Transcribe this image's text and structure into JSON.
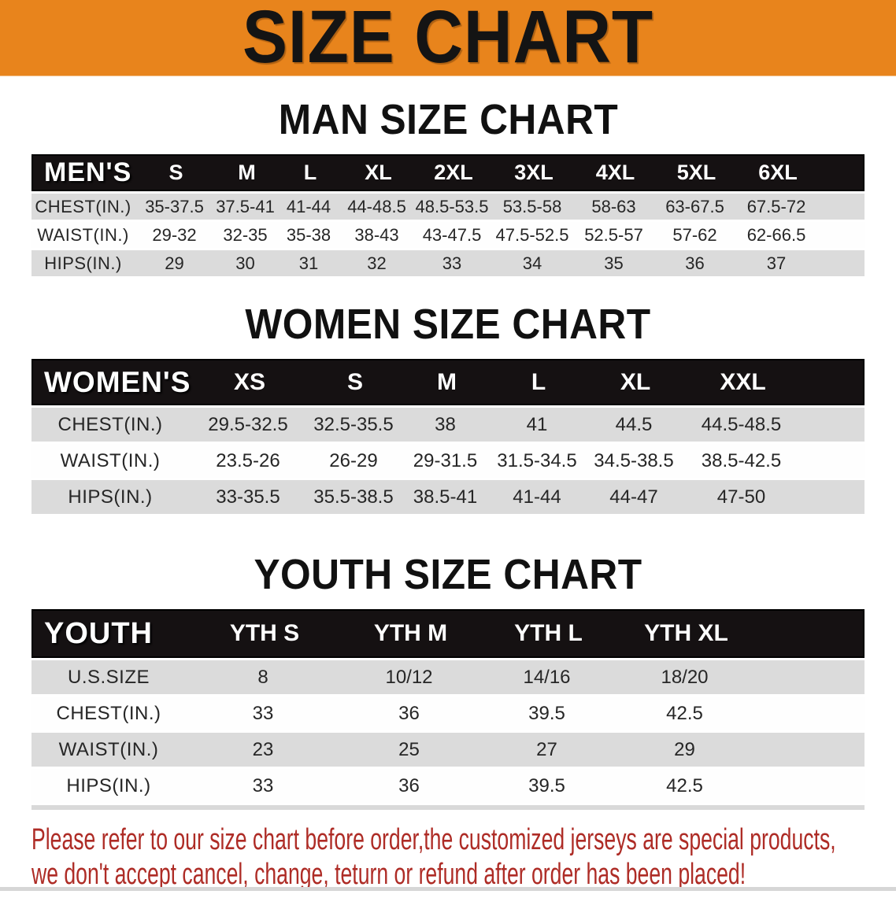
{
  "colors": {
    "banner_orange": "#E8841C",
    "header_bar_black": "#151112",
    "row_gray": "#DBDBDB",
    "disclaimer_red": "#AE2C26"
  },
  "banner": {
    "title": "SIZE CHART"
  },
  "sections": [
    {
      "id": "men",
      "heading": "MAN SIZE CHART",
      "table": {
        "header": [
          "MEN'S",
          "S",
          "M",
          "L",
          "XL",
          "2XL",
          "3XL",
          "4XL",
          "5XL",
          "6XL"
        ],
        "rows": [
          [
            "CHEST(IN.)",
            "35-37.5",
            "37.5-41",
            "41-44",
            "44-48.5",
            "48.5-53.5",
            "53.5-58",
            "58-63",
            "63-67.5",
            "67.5-72"
          ],
          [
            "WAIST(IN.)",
            "29-32",
            "32-35",
            "35-38",
            "38-43",
            "43-47.5",
            "47.5-52.5",
            "52.5-57",
            "57-62",
            "62-66.5"
          ],
          [
            "HIPS(IN.)",
            "29",
            "30",
            "31",
            "32",
            "33",
            "34",
            "35",
            "36",
            "37"
          ]
        ]
      }
    },
    {
      "id": "women",
      "heading": "WOMEN SIZE CHART",
      "table": {
        "header": [
          "WOMEN'S",
          "XS",
          "S",
          "M",
          "L",
          "XL",
          "XXL"
        ],
        "rows": [
          [
            "CHEST(IN.)",
            "29.5-32.5",
            "32.5-35.5",
            "38",
            "41",
            "44.5",
            "44.5-48.5"
          ],
          [
            "WAIST(IN.)",
            "23.5-26",
            "26-29",
            "29-31.5",
            "31.5-34.5",
            "34.5-38.5",
            "38.5-42.5"
          ],
          [
            "HIPS(IN.)",
            "33-35.5",
            "35.5-38.5",
            "38.5-41",
            "41-44",
            "44-47",
            "47-50"
          ]
        ]
      }
    },
    {
      "id": "youth",
      "heading": "YOUTH SIZE CHART",
      "table": {
        "header": [
          "YOUTH",
          "YTH S",
          "YTH M",
          "YTH L",
          "YTH XL"
        ],
        "rows": [
          [
            "U.S.SIZE",
            "8",
            "10/12",
            "14/16",
            "18/20"
          ],
          [
            "CHEST(IN.)",
            "33",
            "36",
            "39.5",
            "42.5"
          ],
          [
            "WAIST(IN.)",
            "23",
            "25",
            "27",
            "29"
          ],
          [
            "HIPS(IN.)",
            "33",
            "36",
            "39.5",
            "42.5"
          ]
        ]
      }
    }
  ],
  "disclaimer": {
    "line1": "Please refer to our size chart before order,the customized jerseys are special products,",
    "line2": "we don't accept cancel, change, teturn or refund after order has been placed!"
  }
}
